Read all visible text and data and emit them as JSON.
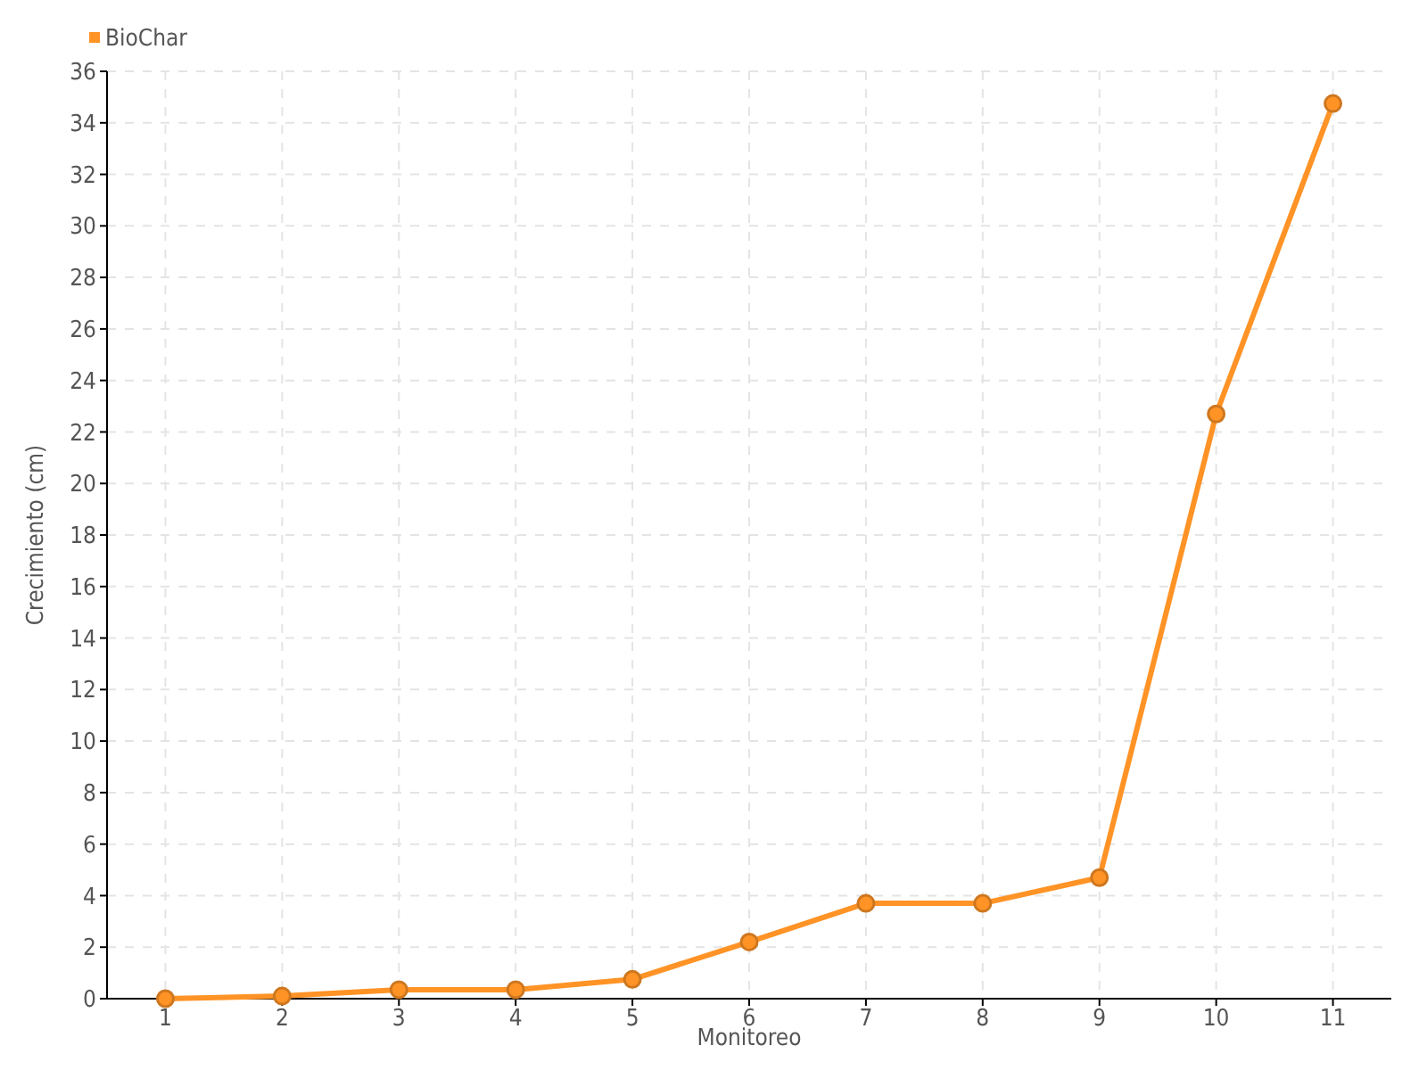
{
  "chart_data": {
    "type": "line",
    "xlabel": "Monitoreo",
    "ylabel": "Crecimiento (cm)",
    "categories": [
      "1",
      "2",
      "3",
      "4",
      "5",
      "6",
      "7",
      "8",
      "9",
      "10",
      "11"
    ],
    "series": [
      {
        "name": "BioChar",
        "color": "#ff9326",
        "values": [
          0,
          0.1,
          0.35,
          0.35,
          0.75,
          2.2,
          3.7,
          3.7,
          4.7,
          22.7,
          34.75
        ]
      }
    ],
    "ylim": [
      0,
      36
    ],
    "yticks": [
      0,
      2,
      4,
      6,
      8,
      10,
      12,
      14,
      16,
      18,
      20,
      22,
      24,
      26,
      28,
      30,
      32,
      34,
      36
    ],
    "grid": true,
    "legend": "top left",
    "marker": "circle",
    "line_style": "solid"
  }
}
